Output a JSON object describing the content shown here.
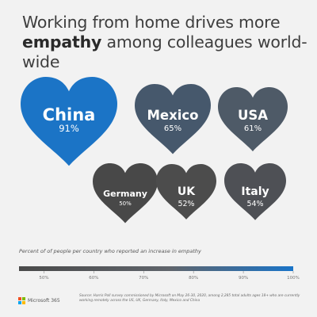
{
  "title": {
    "line1": "Working from home drives more",
    "emphasis": "empathy",
    "line2_rest": " among colleagues world-wide"
  },
  "chart_data": {
    "type": "bubble-heart",
    "categories": [
      "China",
      "Mexico",
      "USA",
      "Germany",
      "UK",
      "Italy"
    ],
    "values": [
      91,
      65,
      61,
      50,
      52,
      54
    ],
    "value_labels": [
      "91%",
      "65%",
      "61%",
      "50%",
      "52%",
      "54%"
    ],
    "unit": "%",
    "color_scale": {
      "min": 45,
      "max": 100,
      "stops": [
        "#4a4a4a",
        "#5f646b",
        "#1a74c8"
      ],
      "ticks": [
        50,
        60,
        70,
        80,
        90,
        100
      ],
      "tick_labels": [
        "50%",
        "60%",
        "70%",
        "80%",
        "90%",
        "100%"
      ]
    },
    "colors": [
      "#1b74c6",
      "#46586c",
      "#4e5a67",
      "#484848",
      "#4c4c4c",
      "#4e5055"
    ]
  },
  "caption": "Percent of of people per country who reported an increase in empathy",
  "footnote": "Source: Harris Poll survey commissioned by Microsoft on May 26-30, 2020, among 2,285 total adults ages 18+ who are currently working remotely across the US, UK, Germany, Italy, Mexico and China",
  "logo": {
    "text": "Microsoft 365",
    "colors": [
      "#f25022",
      "#7fba00",
      "#00a4ef",
      "#ffb900"
    ]
  }
}
